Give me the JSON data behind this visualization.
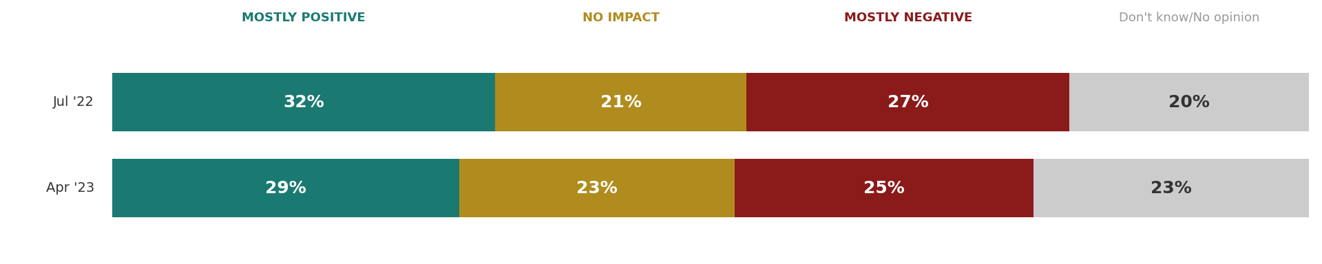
{
  "rows": [
    {
      "label": "Jul '22",
      "values": [
        32,
        21,
        27,
        20
      ],
      "pct_labels": [
        "32%",
        "21%",
        "27%",
        "20%"
      ]
    },
    {
      "label": "Apr '23",
      "values": [
        29,
        23,
        25,
        23
      ],
      "pct_labels": [
        "29%",
        "23%",
        "25%",
        "23%"
      ]
    }
  ],
  "categories": [
    "MOSTLY POSITIVE",
    "NO IMPACT",
    "MOSTLY NEGATIVE",
    "Don't know/No opinion"
  ],
  "colors": [
    "#1a7a72",
    "#b08c1e",
    "#8b1a1a",
    "#cccccc"
  ],
  "header_colors": [
    "#1a7a72",
    "#b08c1e",
    "#8b1a1a",
    "#999999"
  ],
  "value_text_colors": [
    "#ffffff",
    "#ffffff",
    "#ffffff",
    "#333333"
  ],
  "figsize": [
    19.2,
    3.84
  ],
  "dpi": 100,
  "background_color": "#ffffff",
  "label_fontsize": 14,
  "header_fontsize": 13,
  "value_fontsize": 18
}
